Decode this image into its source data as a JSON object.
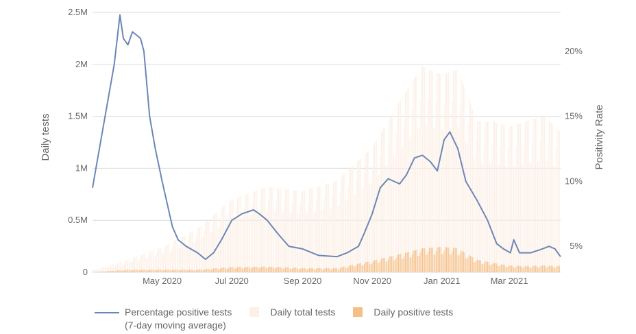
{
  "chart_data": {
    "type": "bar",
    "xlabel": "",
    "ylabel": "Daily tests",
    "y2label": "Positivity Rate",
    "ylim": [
      0,
      2500000
    ],
    "y2lim": [
      3,
      23
    ],
    "y_ticks": [
      "0",
      "0.5M",
      "1M",
      "1.5M",
      "2M",
      "2.5M"
    ],
    "y2_ticks": [
      "5%",
      "10%",
      "15%",
      "20%"
    ],
    "x_ticks": [
      "May 2020",
      "Jul 2020",
      "Sep 2020",
      "Nov 2020",
      "Jan 2021",
      "Mar 2021"
    ],
    "x_range": [
      "2020-03-01",
      "2021-04-15"
    ],
    "grid": true,
    "legend_position": "bottom",
    "series": [
      {
        "name": "Percentage positive tests\n(7-day moving average)",
        "type": "line",
        "axis": "right",
        "color": "#6b86b6",
        "x": [
          "2020-03-01",
          "2020-03-10",
          "2020-03-20",
          "2020-03-25",
          "2020-03-28",
          "2020-04-01",
          "2020-04-05",
          "2020-04-12",
          "2020-04-15",
          "2020-04-20",
          "2020-04-25",
          "2020-05-01",
          "2020-05-10",
          "2020-05-15",
          "2020-05-22",
          "2020-06-01",
          "2020-06-08",
          "2020-06-15",
          "2020-06-22",
          "2020-07-01",
          "2020-07-10",
          "2020-07-20",
          "2020-07-25",
          "2020-08-01",
          "2020-08-10",
          "2020-08-20",
          "2020-09-01",
          "2020-09-15",
          "2020-10-01",
          "2020-10-10",
          "2020-10-20",
          "2020-10-25",
          "2020-11-01",
          "2020-11-08",
          "2020-11-15",
          "2020-11-25",
          "2020-12-01",
          "2020-12-08",
          "2020-12-15",
          "2020-12-22",
          "2020-12-28",
          "2021-01-03",
          "2021-01-08",
          "2021-01-15",
          "2021-01-22",
          "2021-02-01",
          "2021-02-10",
          "2021-02-18",
          "2021-02-24",
          "2021-03-02",
          "2021-03-05",
          "2021-03-10",
          "2021-03-20",
          "2021-03-30",
          "2021-04-05",
          "2021-04-10",
          "2021-04-15"
        ],
        "values": [
          9.5,
          14.0,
          19.0,
          22.8,
          21.0,
          20.5,
          21.5,
          21.0,
          20.0,
          15.0,
          12.5,
          10.0,
          6.5,
          5.5,
          5.0,
          4.5,
          4.0,
          4.5,
          5.5,
          7.0,
          7.5,
          7.8,
          7.5,
          7.0,
          6.0,
          5.0,
          4.8,
          4.3,
          4.2,
          4.5,
          5.0,
          6.0,
          7.5,
          9.5,
          10.2,
          9.8,
          10.5,
          11.8,
          12.0,
          11.5,
          10.8,
          13.2,
          13.8,
          12.5,
          10.0,
          8.5,
          7.0,
          5.2,
          4.8,
          4.5,
          5.5,
          4.5,
          4.5,
          4.8,
          5.0,
          4.8,
          4.2
        ]
      },
      {
        "name": "Daily total tests",
        "type": "bar",
        "axis": "left",
        "color": "#fcefe6",
        "x": [
          "2020-03-01",
          "2020-04-01",
          "2020-05-01",
          "2020-06-01",
          "2020-07-01",
          "2020-08-01",
          "2020-09-01",
          "2020-10-01",
          "2020-11-01",
          "2020-12-01",
          "2020-12-15",
          "2021-01-01",
          "2021-01-15",
          "2021-02-01",
          "2021-02-15",
          "2021-03-01",
          "2021-03-15",
          "2021-04-01",
          "2021-04-15"
        ],
        "values": [
          20000,
          120000,
          240000,
          420000,
          700000,
          820000,
          780000,
          880000,
          1200000,
          1750000,
          1980000,
          1900000,
          1950000,
          1450000,
          1450000,
          1400000,
          1450000,
          1500000,
          1350000
        ]
      },
      {
        "name": "Daily positive tests",
        "type": "bar",
        "axis": "left",
        "color": "#f5bf87",
        "x": [
          "2020-03-01",
          "2020-04-01",
          "2020-05-01",
          "2020-06-01",
          "2020-07-01",
          "2020-08-01",
          "2020-09-01",
          "2020-10-01",
          "2020-11-01",
          "2020-12-01",
          "2020-12-15",
          "2021-01-01",
          "2021-01-15",
          "2021-02-01",
          "2021-02-15",
          "2021-03-01",
          "2021-03-15",
          "2021-04-01",
          "2021-04-15"
        ],
        "values": [
          2000,
          25000,
          25000,
          25000,
          50000,
          55000,
          40000,
          40000,
          110000,
          190000,
          230000,
          245000,
          230000,
          120000,
          90000,
          65000,
          60000,
          65000,
          60000
        ]
      }
    ]
  }
}
